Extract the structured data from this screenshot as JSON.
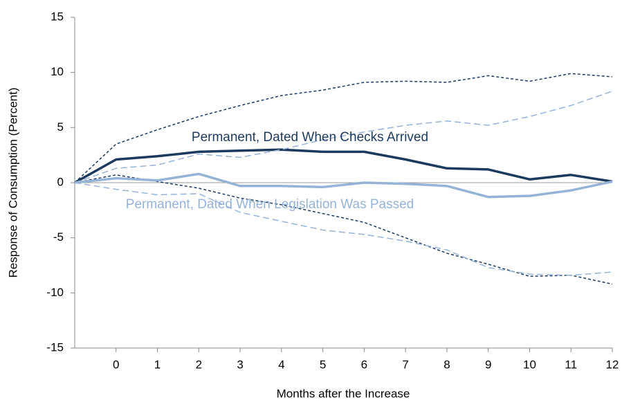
{
  "chart_data": {
    "type": "line",
    "x_label": "Months after the Increase",
    "y_label": "Response of Consumption (Percent)",
    "x": [
      -1,
      0,
      1,
      2,
      3,
      4,
      5,
      6,
      7,
      8,
      9,
      10,
      11,
      12
    ],
    "xlim": [
      -1,
      12
    ],
    "xticks": [
      0,
      1,
      2,
      3,
      4,
      5,
      6,
      7,
      8,
      9,
      10,
      11,
      12
    ],
    "ylim": [
      -15,
      15
    ],
    "yticks": [
      -15,
      -10,
      -5,
      0,
      5,
      10,
      15
    ],
    "series": [
      {
        "name": "Permanent, Dated When Checks Arrived",
        "color": "#1c3a5e",
        "dashed": false,
        "values": [
          0,
          2.1,
          2.4,
          2.8,
          2.9,
          3.0,
          2.8,
          2.8,
          2.1,
          1.3,
          1.2,
          0.3,
          0.7,
          0.1
        ]
      },
      {
        "color": "#1c3a5e",
        "dashed": true,
        "values": [
          0,
          3.5,
          4.8,
          6.0,
          7.0,
          7.9,
          8.4,
          9.1,
          9.2,
          9.1,
          9.7,
          9.2,
          9.9,
          9.6
        ]
      },
      {
        "color": "#1c3a5e",
        "dashed": true,
        "values": [
          0,
          0.7,
          0.1,
          -0.5,
          -1.4,
          -2.0,
          -2.8,
          -3.6,
          -5.0,
          -6.4,
          -7.4,
          -8.5,
          -8.4,
          -9.2
        ]
      },
      {
        "name": "Permanent, Dated When Legislation Was Passed",
        "color": "#95b3d7",
        "dashed": false,
        "values": [
          0,
          0.4,
          0.2,
          0.8,
          -0.3,
          -0.3,
          -0.4,
          0.0,
          -0.1,
          -0.3,
          -1.3,
          -1.2,
          -0.7,
          0.1
        ]
      },
      {
        "color": "#95b3d7",
        "dashed": true,
        "values": [
          0,
          1.3,
          1.6,
          2.6,
          2.3,
          3.0,
          3.9,
          4.6,
          5.2,
          5.6,
          5.2,
          6.0,
          7.0,
          8.3
        ]
      },
      {
        "color": "#95b3d7",
        "dashed": true,
        "values": [
          0,
          -0.6,
          -1.1,
          -1.0,
          -2.7,
          -3.5,
          -4.3,
          -4.7,
          -5.3,
          -6.1,
          -7.7,
          -8.3,
          -8.4,
          -8.1
        ]
      }
    ]
  }
}
